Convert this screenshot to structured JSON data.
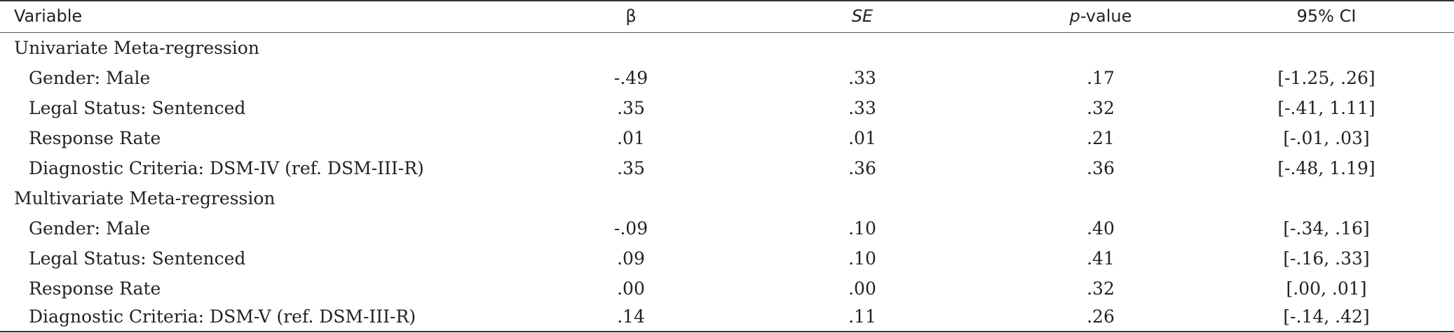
{
  "header": {
    "variable": "Variable",
    "beta": "β",
    "se": "SE",
    "p_italic": "p",
    "p_rest": "-value",
    "ci": "95% CI"
  },
  "sections": [
    {
      "title": "Univariate Meta-regression",
      "rows": [
        {
          "variable": "Gender: Male",
          "beta": "-.49",
          "se": ".33",
          "p": ".17",
          "ci": "[-1.25, .26]"
        },
        {
          "variable": "Legal Status: Sentenced",
          "beta": ".35",
          "se": ".33",
          "p": ".32",
          "ci": "[-.41, 1.11]"
        },
        {
          "variable": "Response Rate",
          "beta": ".01",
          "se": ".01",
          "p": ".21",
          "ci": "[-.01, .03]"
        },
        {
          "variable": "Diagnostic Criteria: DSM-IV (ref. DSM-III-R)",
          "beta": ".35",
          "se": ".36",
          "p": ".36",
          "ci": "[-.48, 1.19]"
        }
      ]
    },
    {
      "title": "Multivariate Meta-regression",
      "rows": [
        {
          "variable": "Gender: Male",
          "beta": "-.09",
          "se": ".10",
          "p": ".40",
          "ci": "[-.34, .16]"
        },
        {
          "variable": "Legal Status: Sentenced",
          "beta": ".09",
          "se": ".10",
          "p": ".41",
          "ci": "[-.16, .33]"
        },
        {
          "variable": "Response Rate",
          "beta": ".00",
          "se": ".00",
          "p": ".32",
          "ci": "[.00, .01]"
        },
        {
          "variable": "Diagnostic Criteria: DSM-V (ref. DSM-III-R)",
          "beta": ".14",
          "se": ".11",
          "p": ".26",
          "ci": "[-.14, .42]"
        }
      ]
    }
  ]
}
